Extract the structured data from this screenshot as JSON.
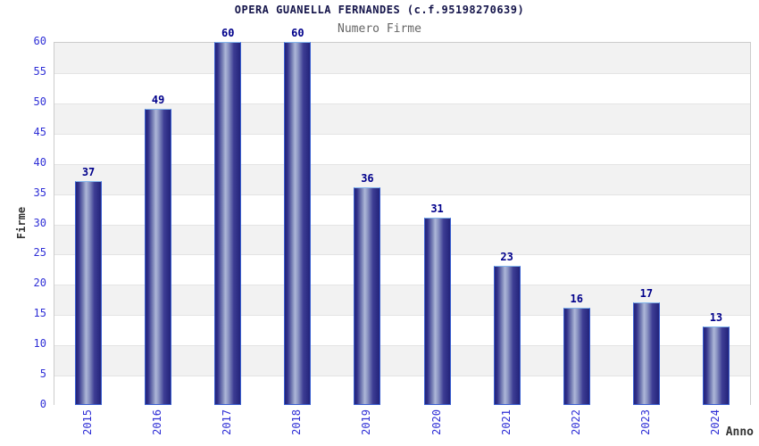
{
  "chart_data": {
    "type": "bar",
    "title": "OPERA GUANELLA FERNANDES (c.f.95198270639)",
    "subtitle": "Numero Firme",
    "xlabel": "Anno",
    "ylabel": "Firme",
    "categories": [
      "2015",
      "2016",
      "2017",
      "2018",
      "2019",
      "2020",
      "2021",
      "2022",
      "2023",
      "2024"
    ],
    "values": [
      37,
      49,
      60,
      60,
      36,
      31,
      23,
      16,
      17,
      13
    ],
    "ylim": [
      0,
      60
    ],
    "ytick_step": 5,
    "ytick_labels": [
      "0",
      "5",
      "10",
      "15",
      "20",
      "25",
      "30",
      "35",
      "40",
      "45",
      "50",
      "55",
      "60"
    ],
    "grid": "horizontal-bands-alternating",
    "legend_position": "none",
    "colors": {
      "bar_dark": "#23237a",
      "bar_mid": "#7c85b8",
      "bar_highlight": "#aeb7d8",
      "bar_border": "#3a5fd0",
      "bar_border_top": "#82b4ec",
      "value_label": "#00008b",
      "tick_label": "#2e2ed6",
      "title": "#14144a",
      "subtitle": "#666666",
      "axis_title": "#333333",
      "band_gray": "#f2f2f2",
      "band_white": "#ffffff",
      "plot_border": "#cccccc"
    }
  }
}
